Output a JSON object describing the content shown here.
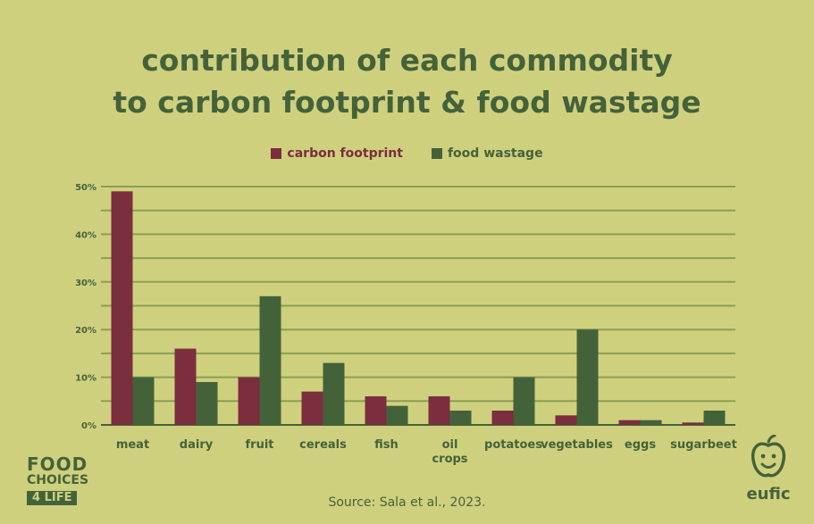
{
  "header": {
    "title_line1": "contribution of each commodity",
    "title_line2": "to carbon footprint & food wastage"
  },
  "footer": {
    "source": "Source: Sala et al., 2023."
  },
  "logos": {
    "left_line1": "FOOD",
    "left_line2": "CHOICES",
    "left_line3": "4 LIFE",
    "right_word": "eufic"
  },
  "colors": {
    "background": "#cfd07e",
    "carbon": "#7a2e3e",
    "wastage": "#44623a",
    "grid": "#8a9e55",
    "text": "#44623a"
  },
  "chart_data": {
    "type": "bar",
    "categories": [
      "meat",
      "dairy",
      "fruit",
      "cereals",
      "fish",
      "oil crops",
      "potatoes",
      "vegetables",
      "eggs",
      "sugarbeet"
    ],
    "series": [
      {
        "name": "carbon footprint",
        "values": [
          49,
          16,
          10,
          7,
          6,
          6,
          3,
          2,
          1,
          0.5
        ]
      },
      {
        "name": "food wastage",
        "values": [
          10,
          9,
          27,
          13,
          4,
          3,
          10,
          20,
          1,
          3
        ]
      }
    ],
    "ylim": [
      0,
      50
    ],
    "yticks": [
      "0%",
      "10%",
      "20%",
      "30%",
      "40%",
      "50%"
    ],
    "grid": true,
    "legend_position": "top-center"
  }
}
